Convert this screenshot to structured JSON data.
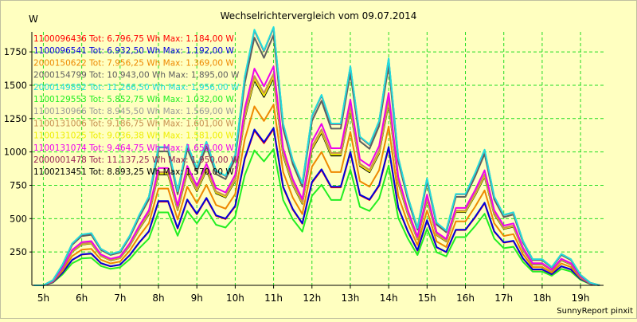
{
  "chart_data": {
    "type": "line",
    "title": "Wechselrichtervergleich vom 09.07.2014",
    "ylabel": "W",
    "xlabel": "",
    "footer": "SunnyReport pinxit",
    "ylim": [
      0,
      1900
    ],
    "xlim": [
      4.7,
      19.6
    ],
    "grid": true,
    "legend_position": "top-left",
    "yticks": [
      250,
      500,
      750,
      1000,
      1250,
      1500,
      1750
    ],
    "xticks": [
      5,
      6,
      7,
      8,
      9,
      10,
      11,
      12,
      13,
      14,
      15,
      16,
      17,
      18,
      19
    ],
    "xtick_labels": [
      "5h",
      "6h",
      "7h",
      "8h",
      "9h",
      "10h",
      "11h",
      "12h",
      "13h",
      "14h",
      "15h",
      "16h",
      "17h",
      "18h",
      "19h"
    ],
    "x": [
      4.75,
      5.0,
      5.25,
      5.5,
      5.75,
      6.0,
      6.25,
      6.5,
      6.75,
      7.0,
      7.25,
      7.5,
      7.75,
      8.0,
      8.25,
      8.5,
      8.75,
      9.0,
      9.25,
      9.5,
      9.75,
      10.0,
      10.25,
      10.5,
      10.75,
      11.0,
      11.25,
      11.5,
      11.75,
      12.0,
      12.25,
      12.5,
      12.75,
      13.0,
      13.25,
      13.5,
      13.75,
      14.0,
      14.25,
      14.5,
      14.75,
      15.0,
      15.25,
      15.5,
      15.75,
      16.0,
      16.25,
      16.5,
      16.75,
      17.0,
      17.25,
      17.5,
      17.75,
      18.0,
      18.25,
      18.5,
      18.75,
      19.0,
      19.25,
      19.5
    ],
    "series": [
      {
        "name": "1100096436",
        "label": "1100096436 Tot: 6.796,75 Wh Max: 1.184,00 W",
        "color": "#ff0000",
        "peak": 1184
      },
      {
        "name": "1100096541",
        "label": "1100096541 Tot: 6.932,50 Wh Max: 1.192,00 W",
        "color": "#0000dd",
        "peak": 1192
      },
      {
        "name": "2000150622",
        "label": "2000150622 Tot: 7.956,25 Wh Max: 1.369,00 W",
        "color": "#ee8800",
        "peak": 1369
      },
      {
        "name": "2000154799",
        "label": "2000154799 Tot: 10.943,00 Wh Max: 1.895,00 W",
        "color": "#606060",
        "peak": 1895
      },
      {
        "name": "2000149892",
        "label": "2000149892 Tot: 11.266,50 Wh Max: 1.956,00 W",
        "color": "#22dddd",
        "peak": 1956
      },
      {
        "name": "1100129553",
        "label": "1100129553 Tot: 5.852,75 Wh Max: 1.032,00 W",
        "color": "#22ee22",
        "peak": 1032
      },
      {
        "name": "1100130966",
        "label": "1100130966 Tot: 8.945,50 Wh Max: 1.569,00 W",
        "color": "#999999",
        "peak": 1569
      },
      {
        "name": "1100131006",
        "label": "1100131006 Tot: 9.186,75 Wh Max: 1.601,00 W",
        "color": "#c89050",
        "peak": 1601
      },
      {
        "name": "1100131025",
        "label": "1100131025 Tot: 9.036,38 Wh Max: 1.581,00 W",
        "color": "#eeee00",
        "peak": 1581
      },
      {
        "name": "1100131074",
        "label": "1100131074 Tot: 9.464,75 Wh Max: 1.658,00 W",
        "color": "#ee00ee",
        "peak": 1658
      },
      {
        "name": "2000001478",
        "label": "2000001478 Tot: 11.137,25 Wh Max: 1.950,00 W",
        "color": "#992255",
        "peak": 1950
      },
      {
        "name": "1100213451",
        "label": "1100213451 Tot: 8.893,25 Wh Max: 1.570,00 W",
        "color": "#000000",
        "peak": 1570
      }
    ],
    "profile": [
      0,
      0,
      0.02,
      0.08,
      0.16,
      0.195,
      0.2,
      0.14,
      0.12,
      0.13,
      0.19,
      0.27,
      0.34,
      0.53,
      0.53,
      0.36,
      0.54,
      0.45,
      0.55,
      0.44,
      0.42,
      0.5,
      0.8,
      0.98,
      0.9,
      0.99,
      0.62,
      0.48,
      0.39,
      0.65,
      0.73,
      0.62,
      0.62,
      0.84,
      0.57,
      0.54,
      0.63,
      0.87,
      0.49,
      0.34,
      0.22,
      0.41,
      0.24,
      0.21,
      0.35,
      0.35,
      0.43,
      0.52,
      0.34,
      0.27,
      0.28,
      0.17,
      0.1,
      0.1,
      0.07,
      0.12,
      0.1,
      0.04,
      0.01,
      0
    ]
  }
}
